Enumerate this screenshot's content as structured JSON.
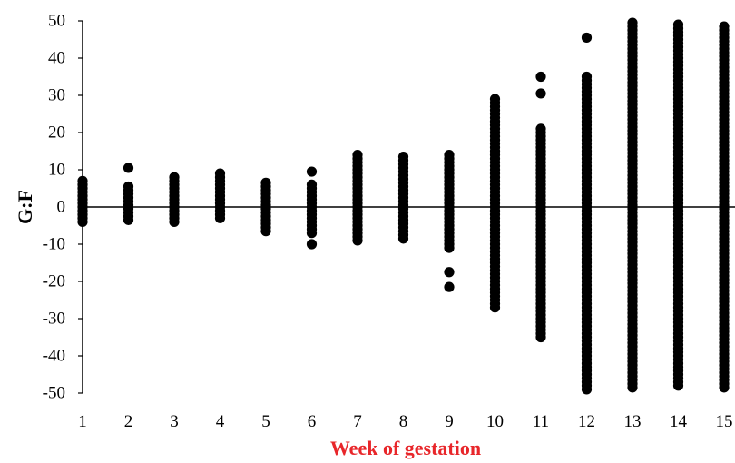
{
  "chart_data": {
    "type": "scatter",
    "title": "",
    "xlabel": "Week of gestation",
    "ylabel": "G:F",
    "xlabel_color": "#e8262a",
    "point_color": "#000000",
    "xlim": [
      1,
      15
    ],
    "ylim": [
      -50,
      50
    ],
    "x_ticks": [
      1,
      2,
      3,
      4,
      5,
      6,
      7,
      8,
      9,
      10,
      11,
      12,
      13,
      14,
      15
    ],
    "y_ticks": [
      -50,
      -40,
      -30,
      -20,
      -10,
      0,
      10,
      20,
      30,
      40,
      50
    ],
    "grid": false,
    "legend": "none",
    "weeks": [
      {
        "x": 1,
        "min": -4,
        "max": 7,
        "outliers": []
      },
      {
        "x": 2,
        "min": -3.5,
        "max": 5.5,
        "outliers": [
          10.5
        ]
      },
      {
        "x": 3,
        "min": -4,
        "max": 8,
        "outliers": []
      },
      {
        "x": 4,
        "min": -3,
        "max": 9,
        "outliers": []
      },
      {
        "x": 5,
        "min": -6.5,
        "max": 6.5,
        "outliers": []
      },
      {
        "x": 6,
        "min": -7,
        "max": 6.5,
        "outliers": [
          9.5,
          -10
        ]
      },
      {
        "x": 7,
        "min": -9,
        "max": 14,
        "outliers": []
      },
      {
        "x": 8,
        "min": -8.5,
        "max": 13.5,
        "outliers": []
      },
      {
        "x": 9,
        "min": -11,
        "max": 14.5,
        "outliers": [
          -17.5,
          -21.5
        ]
      },
      {
        "x": 10,
        "min": -27,
        "max": 29,
        "outliers": []
      },
      {
        "x": 11,
        "min": -35,
        "max": 21,
        "outliers": [
          30.5,
          35
        ]
      },
      {
        "x": 12,
        "min": -49,
        "max": 35.5,
        "outliers": [
          45.5
        ]
      },
      {
        "x": 13,
        "min": -48.5,
        "max": 49.5,
        "outliers": []
      },
      {
        "x": 14,
        "min": -48,
        "max": 49.5,
        "outliers": []
      },
      {
        "x": 15,
        "min": -48.5,
        "max": 48.5,
        "outliers": []
      }
    ]
  }
}
